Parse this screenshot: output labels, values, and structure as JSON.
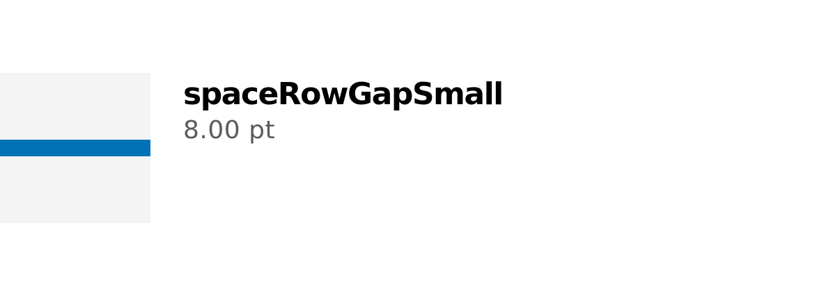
{
  "token": {
    "name": "spaceRowGapSmall",
    "value": "8.00 pt"
  },
  "colors": {
    "swatch_background": "#f4f4f4",
    "gap_bar": "#0072b5",
    "name_text": "#000000",
    "value_text": "#5b5b5b"
  }
}
